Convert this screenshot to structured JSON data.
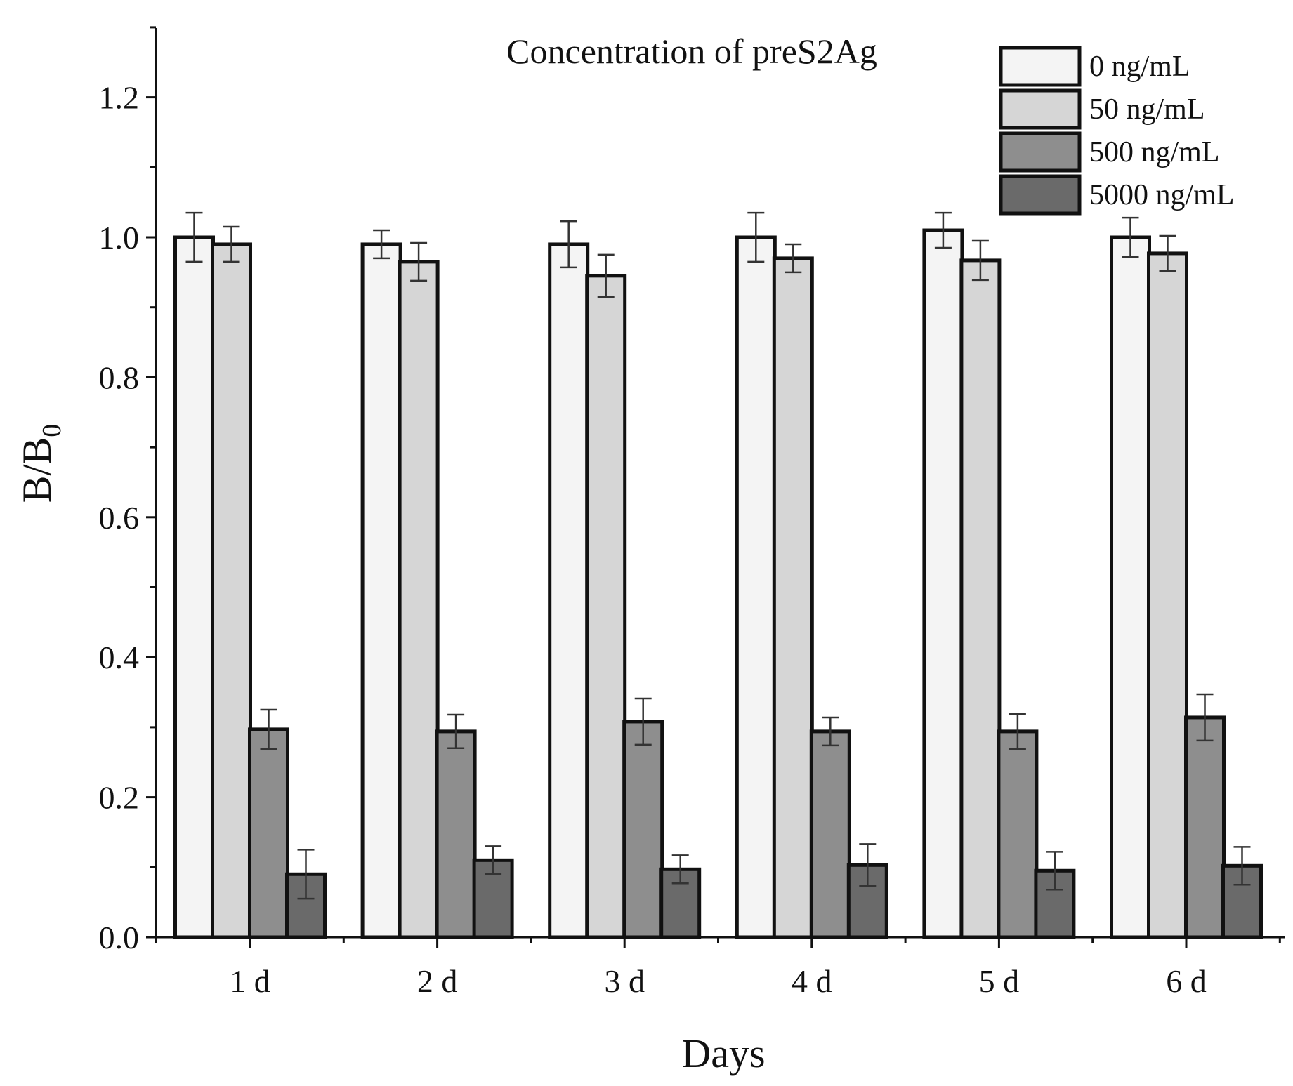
{
  "chart_data": {
    "type": "bar",
    "title": "Concentration of preS2Ag",
    "xlabel": "Days",
    "ylabel": "B/B",
    "ylabel_subscript": "0",
    "ylim": [
      0,
      1.3
    ],
    "yticks": [
      "0.0",
      "0.2",
      "0.4",
      "0.6",
      "0.8",
      "1.0",
      "1.2"
    ],
    "categories": [
      "1 d",
      "2 d",
      "3 d",
      "4 d",
      "5 d",
      "6 d"
    ],
    "legend_position": "top-right",
    "series": [
      {
        "name": "0 ng/mL",
        "color": "#f4f4f4",
        "values": [
          1.0,
          0.99,
          0.99,
          1.0,
          1.01,
          1.0
        ],
        "errors": [
          0.035,
          0.02,
          0.033,
          0.035,
          0.025,
          0.028
        ]
      },
      {
        "name": "50 ng/mL",
        "color": "#d6d6d6",
        "values": [
          0.99,
          0.965,
          0.945,
          0.97,
          0.967,
          0.977
        ],
        "errors": [
          0.025,
          0.027,
          0.03,
          0.02,
          0.028,
          0.025
        ]
      },
      {
        "name": "500 ng/mL",
        "color": "#8e8e8e",
        "values": [
          0.297,
          0.294,
          0.308,
          0.294,
          0.294,
          0.314
        ],
        "errors": [
          0.028,
          0.024,
          0.033,
          0.02,
          0.025,
          0.033
        ]
      },
      {
        "name": "5000 ng/mL",
        "color": "#6a6a6a",
        "values": [
          0.09,
          0.11,
          0.097,
          0.103,
          0.095,
          0.102
        ],
        "errors": [
          0.035,
          0.02,
          0.02,
          0.03,
          0.027,
          0.027
        ]
      }
    ]
  }
}
